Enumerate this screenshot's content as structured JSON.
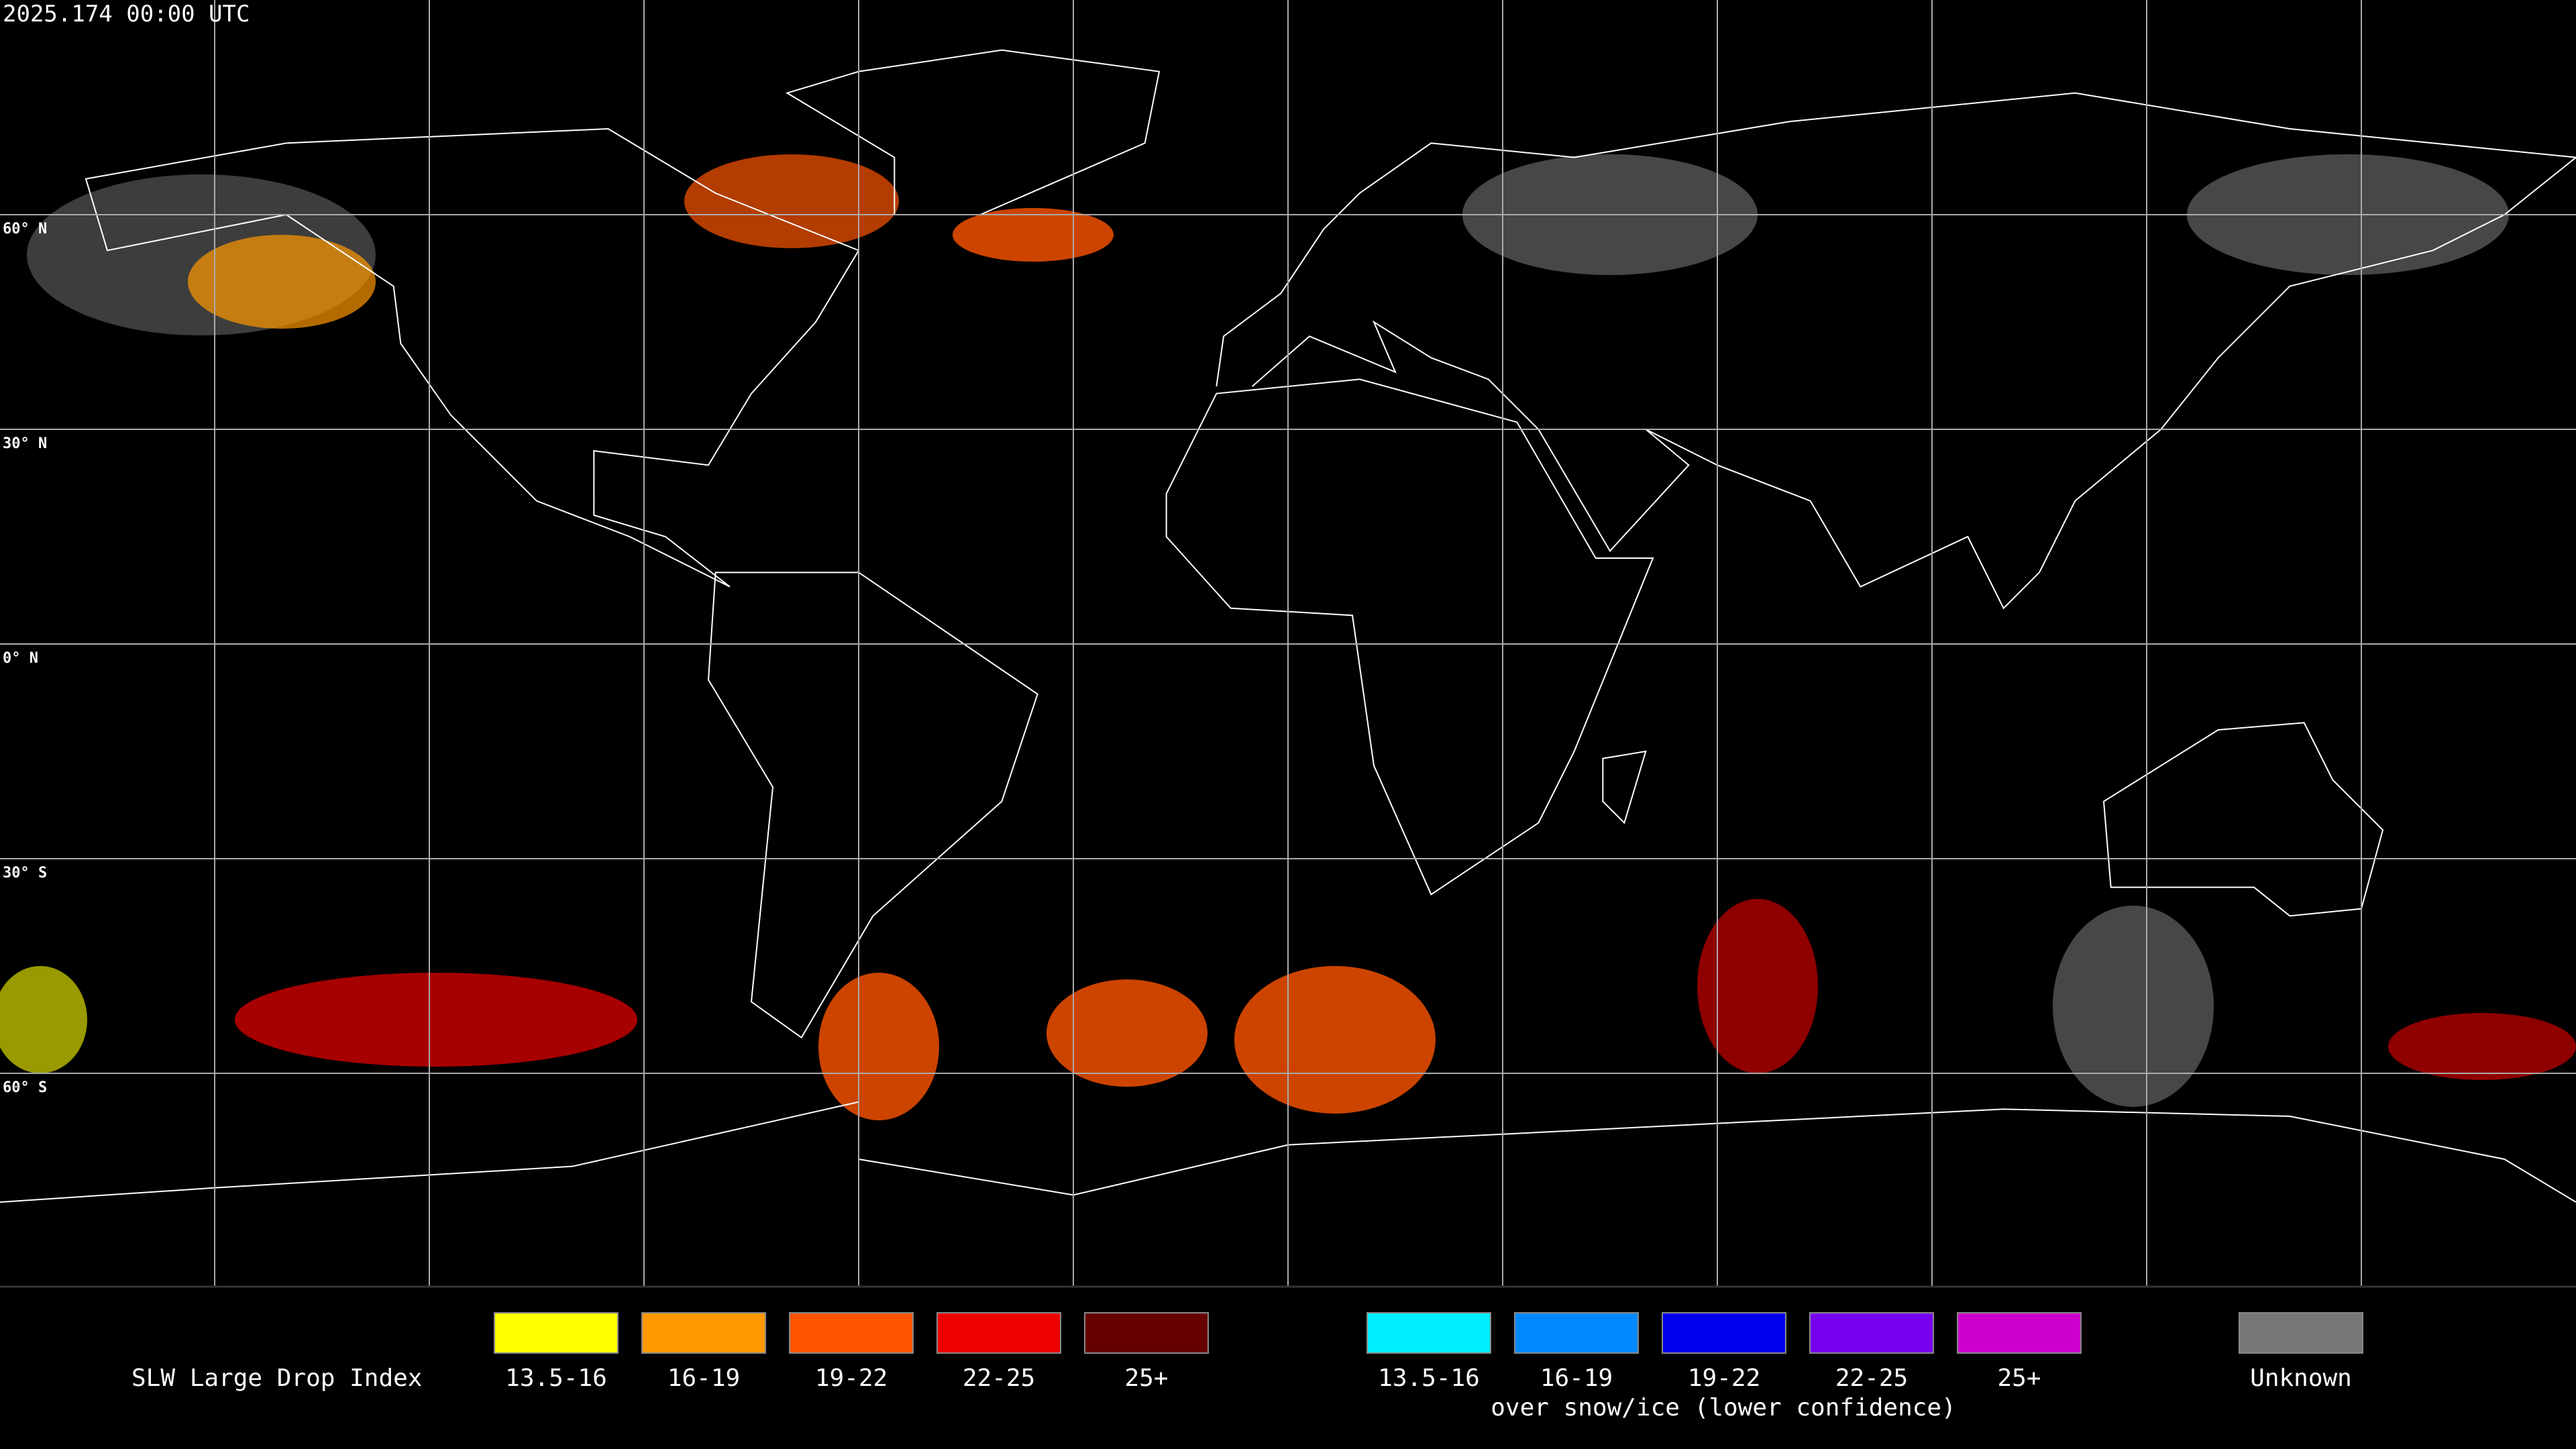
{
  "header": {
    "timestamp": "2025.174 00:00 UTC"
  },
  "map": {
    "latitude_labels": [
      "60° N",
      "30° N",
      "0° N",
      "30° S",
      "60° S"
    ]
  },
  "legend": {
    "title": "SLW Large Drop Index",
    "items": [
      {
        "label": "13.5-16",
        "color": "#ffff00"
      },
      {
        "label": "16-19",
        "color": "#ff9900"
      },
      {
        "label": "19-22",
        "color": "#ff5500"
      },
      {
        "label": "22-25",
        "color": "#ee0000"
      },
      {
        "label": "25+",
        "color": "#660000"
      }
    ],
    "snow_items": [
      {
        "label": "13.5-16",
        "color": "#00eeff"
      },
      {
        "label": "16-19",
        "color": "#0088ff"
      },
      {
        "label": "19-22",
        "color": "#0000ee"
      },
      {
        "label": "22-25",
        "color": "#7700ee"
      },
      {
        "label": "25+",
        "color": "#cc00cc"
      }
    ],
    "snow_note": "over snow/ice (lower confidence)",
    "unknown": {
      "label": "Unknown",
      "color": "#777777"
    }
  }
}
